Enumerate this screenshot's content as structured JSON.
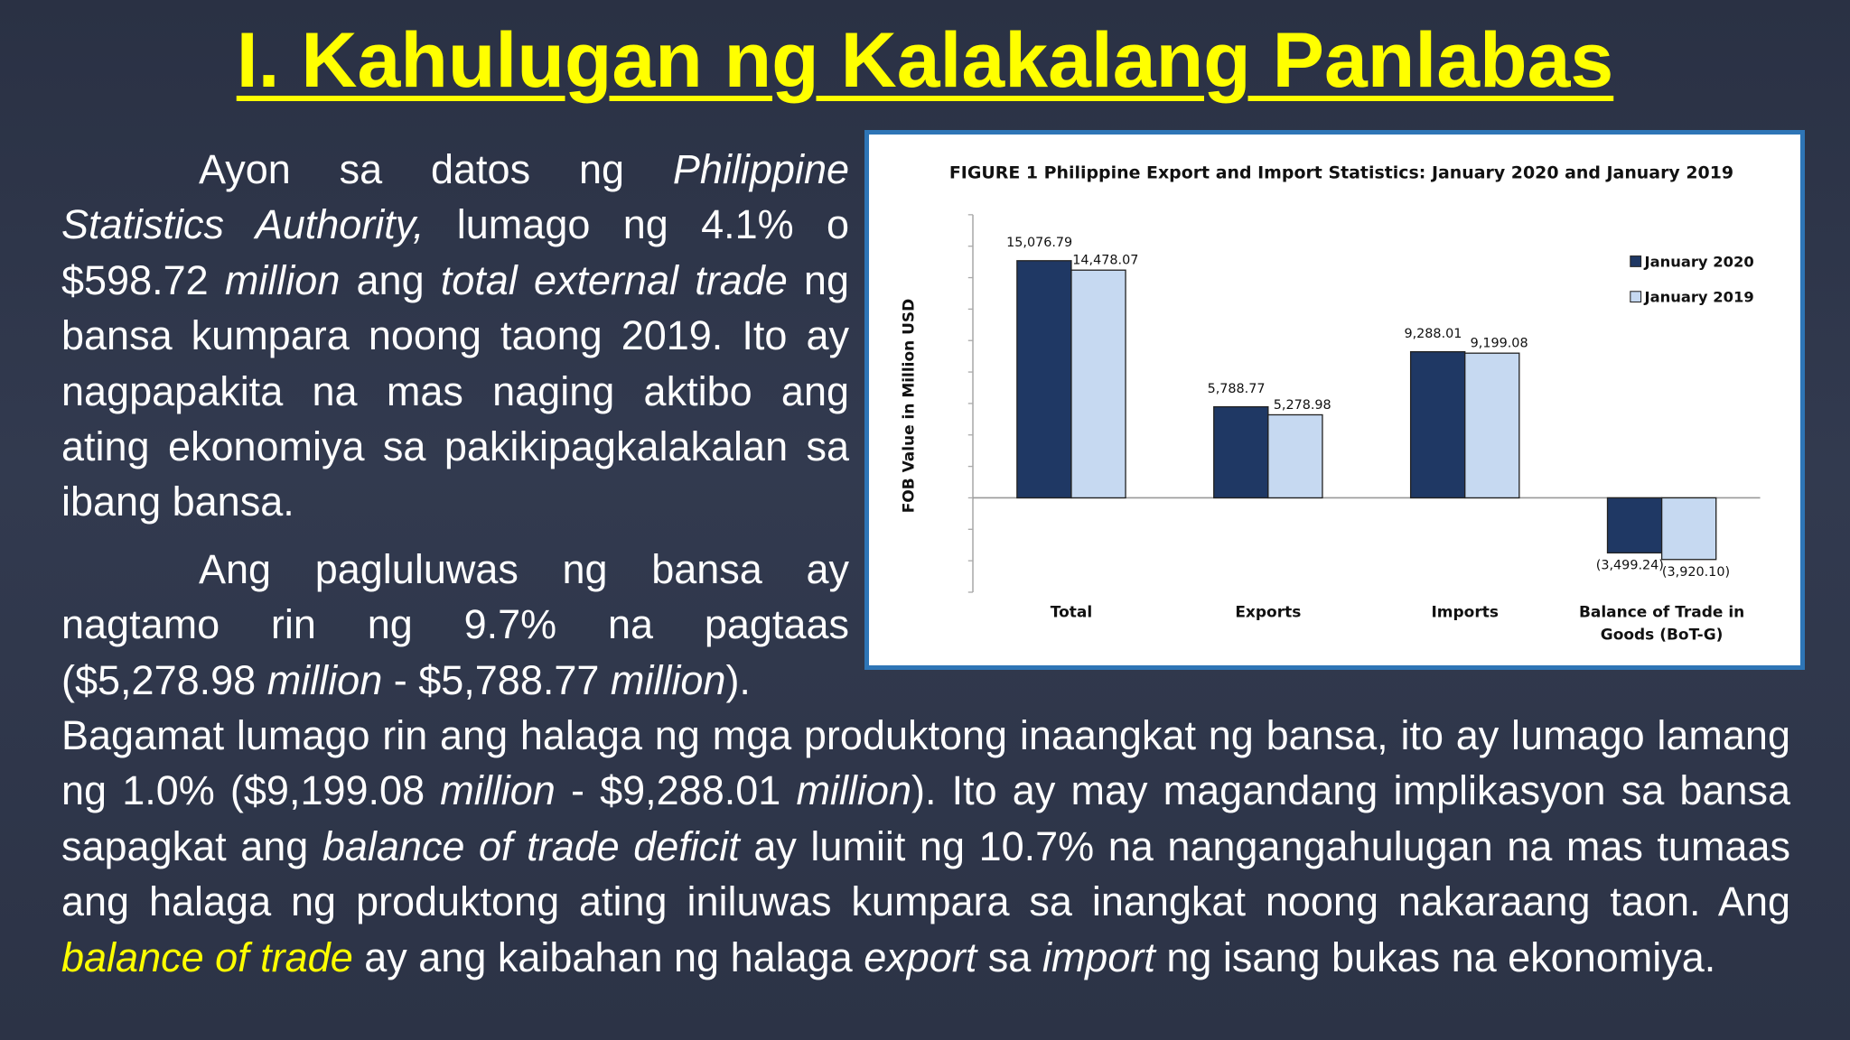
{
  "title": "I. Kahulugan ng Kalakalang Panlabas",
  "paragraphs": [
    {
      "runs": [
        {
          "text": "Ayon sa datos ng "
        },
        {
          "text": "Philippine Statistics Authority,",
          "italic": true
        },
        {
          "text": " lumago ng 4.1% o $598.72 "
        },
        {
          "text": "million",
          "italic": true
        },
        {
          "text": " ang "
        },
        {
          "text": "total external trade",
          "italic": true
        },
        {
          "text": " ng bansa kumpara noong taong 2019. Ito ay nagpapakita na mas naging aktibo ang ating ekonomiya sa pakikipagkalakalan sa ibang bansa."
        }
      ]
    },
    {
      "runs": [
        {
          "text": "Ang pagluluwas ng bansa ay nagtamo rin ng 9.7% na pagtaas ($5,278.98 "
        },
        {
          "text": "million",
          "italic": true
        },
        {
          "text": " - $5,788.77 "
        },
        {
          "text": "million",
          "italic": true
        },
        {
          "text": ")."
        }
      ]
    },
    {
      "runs": [
        {
          "text": "Bagamat lumago rin ang halaga ng mga produktong inaangkat ng bansa, ito ay lumago lamang ng 1.0% ($9,199.08 "
        },
        {
          "text": "million",
          "italic": true
        },
        {
          "text": " - $9,288.01 "
        },
        {
          "text": "million",
          "italic": true
        },
        {
          "text": "). Ito ay may magandang implikasyon sa bansa sapagkat ang "
        },
        {
          "text": "balance of trade deficit",
          "italic": true
        },
        {
          "text": " ay lumiit ng 10.7% na nangangahulugan na mas tumaas ang halaga ng produktong ating iniluwas kumpara sa inangkat noong nakaraang taon. Ang "
        },
        {
          "text": "balance of trade",
          "italic": true,
          "color": "#ffff00"
        },
        {
          "text": " ay ang kaibahan ng halaga "
        },
        {
          "text": "export",
          "italic": true
        },
        {
          "text": " sa "
        },
        {
          "text": "import",
          "italic": true
        },
        {
          "text": " ng isang bukas na ekonomiya."
        }
      ]
    }
  ],
  "chart_data": {
    "type": "bar",
    "title": "FIGURE 1  Philippine Export and Import Statistics:  January 2020 and January 2019",
    "y_label": "FOB Value in Million USD",
    "categories": [
      "Total",
      "Exports",
      "Imports",
      "Balance of Trade in Goods (BoT-G)"
    ],
    "series": [
      {
        "name": "January 2020",
        "color": "#1f3864",
        "values": [
          15076.79,
          5788.77,
          9288.01,
          -3499.24
        ],
        "value_labels": [
          "15,076.79",
          "5,788.77",
          "9,288.01",
          "(3,499.24)"
        ]
      },
      {
        "name": "January 2019",
        "color": "#c6d9f1",
        "values": [
          14478.07,
          5278.98,
          9199.08,
          -3920.1
        ],
        "value_labels": [
          "14,478.07",
          "5,278.98",
          "9,199.08",
          "(3,920.10)"
        ]
      }
    ],
    "ylim": [
      -6000,
      18000
    ],
    "yticks": [
      -6000,
      -4000,
      -2000,
      0,
      2000,
      4000,
      6000,
      8000,
      10000,
      12000,
      14000,
      16000,
      18000
    ],
    "legend": "upper right"
  }
}
